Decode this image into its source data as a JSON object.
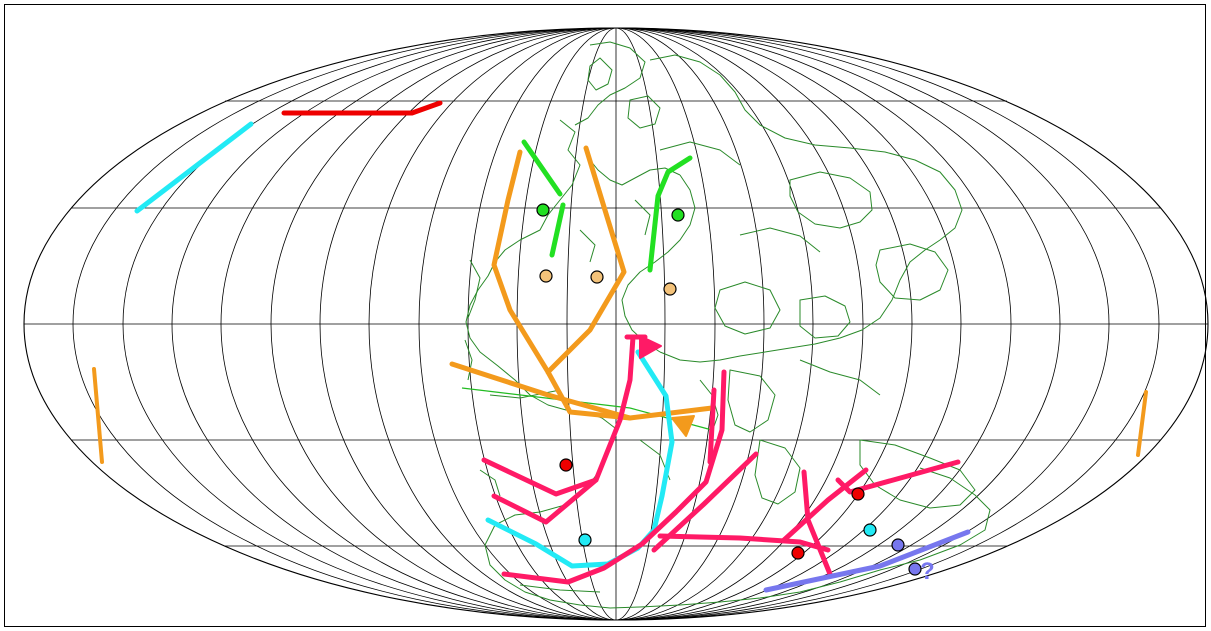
{
  "map": {
    "projection": "Mollweide",
    "colors": {
      "graticule": "#000000",
      "coastline": "#2a8a2a",
      "orange": "#f39a1c",
      "green": "#22e022",
      "magenta": "#ff1a66",
      "cyan": "#22eaf5",
      "red": "#ee0000",
      "blue": "#7777ee",
      "peach": "#f3c27a"
    },
    "annotation": {
      "text": "?",
      "color": "#7777ee"
    },
    "legend": []
  }
}
